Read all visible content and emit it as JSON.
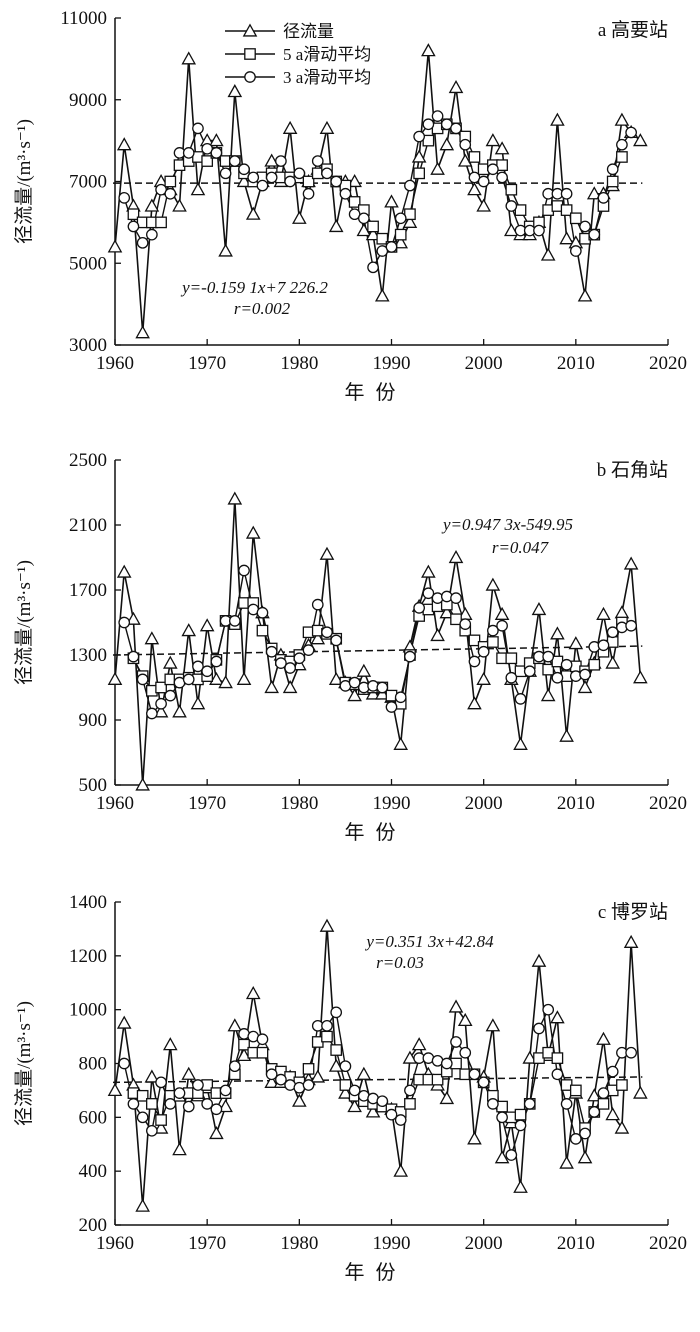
{
  "legend": {
    "series": [
      {
        "name": "径流量",
        "marker": "triangle-icon"
      },
      {
        "name": "5 a滑动平均",
        "marker": "square-icon"
      },
      {
        "name": "3 a滑动平均",
        "marker": "circle-icon"
      }
    ]
  },
  "chart_data": [
    {
      "type": "line",
      "title": "a 高要站",
      "xlabel": "年 份",
      "ylabel": "径流量/(m³·s⁻¹)",
      "xlim": [
        1960,
        2020
      ],
      "ylim": [
        3000,
        11000
      ],
      "yticks": [
        3000,
        5000,
        7000,
        9000,
        11000
      ],
      "xticks": [
        1960,
        1970,
        1980,
        1990,
        2000,
        2010,
        2020
      ],
      "trend": {
        "slope": -0.1591,
        "intercept": 7226.2,
        "y_start": 6960,
        "y_end": 6960
      },
      "equation": "y=-0.159 1x+7 226.2",
      "r_text": "r=0.002",
      "x": [
        1960,
        1961,
        1962,
        1963,
        1964,
        1965,
        1966,
        1967,
        1968,
        1969,
        1970,
        1971,
        1972,
        1973,
        1974,
        1975,
        1976,
        1977,
        1978,
        1979,
        1980,
        1981,
        1982,
        1983,
        1984,
        1985,
        1986,
        1987,
        1988,
        1989,
        1990,
        1991,
        1992,
        1993,
        1994,
        1995,
        1996,
        1997,
        1998,
        1999,
        2000,
        2001,
        2002,
        2003,
        2004,
        2005,
        2006,
        2007,
        2008,
        2009,
        2010,
        2011,
        2012,
        2013,
        2014,
        2015,
        2016,
        2017
      ],
      "series": [
        {
          "name": "径流量",
          "values": [
            5400,
            7900,
            6400,
            3300,
            6400,
            7000,
            6800,
            6400,
            10000,
            6800,
            8000,
            8000,
            5300,
            9200,
            7000,
            6200,
            7000,
            7500,
            7000,
            8300,
            6100,
            7000,
            7300,
            8300,
            5900,
            7000,
            7000,
            5800,
            5700,
            4200,
            6500,
            5500,
            6000,
            7600,
            10200,
            7300,
            7900,
            9300,
            7500,
            6800,
            6400,
            8000,
            7800,
            5800,
            5700,
            5700,
            6000,
            5200,
            8500,
            5600,
            5500,
            4200,
            6700,
            6700,
            6900,
            8500,
            8200,
            8000
          ]
        },
        {
          "name": "5 a滑动平均",
          "values": [
            null,
            null,
            6200,
            6000,
            6000,
            6000,
            7000,
            7400,
            7500,
            7600,
            7500,
            7700,
            7500,
            7500,
            7200,
            7000,
            7100,
            7200,
            7100,
            7100,
            7100,
            7000,
            7200,
            7300,
            7000,
            6900,
            6500,
            6300,
            5900,
            5600,
            5400,
            5700,
            6200,
            7200,
            8000,
            8300,
            8400,
            8300,
            8100,
            7600,
            7300,
            7400,
            7400,
            6800,
            6300,
            5900,
            6000,
            6300,
            6400,
            6300,
            6100,
            5600,
            5700,
            6400,
            7000,
            7600,
            null,
            null
          ]
        },
        {
          "name": "3 a滑动平均",
          "values": [
            null,
            6600,
            5900,
            5500,
            5700,
            6800,
            6700,
            7700,
            7700,
            8300,
            7800,
            7700,
            7200,
            7500,
            7300,
            7100,
            6900,
            7100,
            7500,
            7000,
            7200,
            6700,
            7500,
            7200,
            7000,
            6700,
            6200,
            6100,
            4900,
            5300,
            5400,
            6100,
            6900,
            8100,
            8400,
            8600,
            8400,
            8300,
            7900,
            7100,
            7000,
            7300,
            7100,
            6400,
            5800,
            5800,
            5800,
            6700,
            6700,
            6700,
            5300,
            5900,
            5700,
            6600,
            7300,
            7900,
            8200,
            null
          ]
        }
      ]
    },
    {
      "type": "line",
      "title": "b 石角站",
      "xlabel": "年 份",
      "ylabel": "径流量/(m³·s⁻¹)",
      "xlim": [
        1960,
        2020
      ],
      "ylim": [
        500,
        2500
      ],
      "yticks": [
        500,
        900,
        1300,
        1700,
        2100,
        2500
      ],
      "xticks": [
        1960,
        1970,
        1980,
        1990,
        2000,
        2010,
        2020
      ],
      "trend": {
        "slope": 0.9473,
        "intercept": -549.95,
        "y_start": 1300,
        "y_end": 1355
      },
      "equation": "y=0.947 3x-549.95",
      "r_text": "r=0.047",
      "x": [
        1960,
        1961,
        1962,
        1963,
        1964,
        1965,
        1966,
        1967,
        1968,
        1969,
        1970,
        1971,
        1972,
        1973,
        1974,
        1975,
        1976,
        1977,
        1978,
        1979,
        1980,
        1981,
        1982,
        1983,
        1984,
        1985,
        1986,
        1987,
        1988,
        1989,
        1990,
        1991,
        1992,
        1993,
        1994,
        1995,
        1996,
        1997,
        1998,
        1999,
        2000,
        2001,
        2002,
        2003,
        2004,
        2005,
        2006,
        2007,
        2008,
        2009,
        2010,
        2011,
        2012,
        2013,
        2014,
        2015,
        2016,
        2017
      ],
      "series": [
        {
          "name": "径流量",
          "values": [
            1150,
            1810,
            1520,
            500,
            1400,
            950,
            1250,
            950,
            1450,
            1000,
            1480,
            1150,
            1130,
            2260,
            1150,
            2050,
            1560,
            1100,
            1300,
            1100,
            1240,
            1360,
            1400,
            1920,
            1150,
            1130,
            1050,
            1200,
            1060,
            1060,
            1040,
            750,
            1350,
            1600,
            1810,
            1420,
            1560,
            1900,
            1550,
            1000,
            1150,
            1730,
            1550,
            1150,
            750,
            1200,
            1580,
            1050,
            1430,
            800,
            1370,
            1100,
            1250,
            1550,
            1250,
            1560,
            1860,
            1160
          ]
        },
        {
          "name": "5 a滑动平均",
          "values": [
            null,
            null,
            1280,
            1170,
            1080,
            1100,
            1150,
            1150,
            1160,
            1150,
            1170,
            1270,
            1510,
            1490,
            1620,
            1620,
            1450,
            1340,
            1270,
            1260,
            1300,
            1440,
            1450,
            1430,
            1400,
            1130,
            1120,
            1090,
            1100,
            1100,
            1050,
            1000,
            1300,
            1540,
            1580,
            1600,
            1610,
            1520,
            1450,
            1390,
            1350,
            1380,
            1280,
            1280,
            1200,
            1250,
            1280,
            1210,
            1260,
            1170,
            1230,
            1200,
            1240,
            1320,
            1380,
            1500,
            null,
            null
          ]
        },
        {
          "name": "3 a滑动平均",
          "values": [
            null,
            1500,
            1290,
            1150,
            940,
            1000,
            1050,
            1130,
            1150,
            1230,
            1200,
            1260,
            1510,
            1510,
            1820,
            1580,
            1560,
            1320,
            1250,
            1220,
            1280,
            1330,
            1610,
            1440,
            1390,
            1110,
            1130,
            1100,
            1110,
            1100,
            980,
            1040,
            1290,
            1590,
            1680,
            1650,
            1660,
            1650,
            1490,
            1260,
            1320,
            1450,
            1480,
            1160,
            1030,
            1200,
            1290,
            1290,
            1160,
            1240,
            1170,
            1180,
            1350,
            1360,
            1440,
            1470,
            1480,
            null
          ]
        }
      ]
    },
    {
      "type": "line",
      "title": "c 博罗站",
      "xlabel": "年 份",
      "ylabel": "径流量/(m³·s⁻¹)",
      "xlim": [
        1960,
        2020
      ],
      "ylim": [
        200,
        1400
      ],
      "yticks": [
        200,
        400,
        600,
        800,
        1000,
        1200,
        1400
      ],
      "xticks": [
        1960,
        1970,
        1980,
        1990,
        2000,
        2010,
        2020
      ],
      "trend": {
        "slope": 0.3513,
        "intercept": 42.84,
        "y_start": 730,
        "y_end": 750
      },
      "equation": "y=0.351 3x+42.84",
      "r_text": "r=0.03",
      "x": [
        1960,
        1961,
        1962,
        1963,
        1964,
        1965,
        1966,
        1967,
        1968,
        1969,
        1970,
        1971,
        1972,
        1973,
        1974,
        1975,
        1976,
        1977,
        1978,
        1979,
        1980,
        1981,
        1982,
        1983,
        1984,
        1985,
        1986,
        1987,
        1988,
        1989,
        1990,
        1991,
        1992,
        1993,
        1994,
        1995,
        1996,
        1997,
        1998,
        1999,
        2000,
        2001,
        2002,
        2003,
        2004,
        2005,
        2006,
        2007,
        2008,
        2009,
        2010,
        2011,
        2012,
        2013,
        2014,
        2015,
        2016,
        2017
      ],
      "series": [
        {
          "name": "径流量",
          "values": [
            700,
            950,
            720,
            270,
            750,
            560,
            870,
            480,
            760,
            680,
            710,
            540,
            640,
            940,
            830,
            1060,
            870,
            730,
            730,
            750,
            660,
            740,
            750,
            1310,
            790,
            690,
            640,
            760,
            620,
            640,
            630,
            400,
            820,
            870,
            760,
            720,
            670,
            1010,
            960,
            520,
            750,
            940,
            450,
            580,
            340,
            820,
            1180,
            830,
            970,
            430,
            690,
            450,
            680,
            890,
            610,
            560,
            1250,
            690
          ]
        },
        {
          "name": "5 a滑动平均",
          "values": [
            null,
            null,
            690,
            680,
            650,
            590,
            680,
            680,
            690,
            690,
            720,
            690,
            690,
            760,
            870,
            840,
            840,
            780,
            770,
            750,
            730,
            780,
            880,
            900,
            850,
            720,
            680,
            660,
            650,
            640,
            630,
            620,
            650,
            740,
            740,
            740,
            770,
            800,
            760,
            760,
            730,
            680,
            640,
            600,
            610,
            650,
            820,
            840,
            820,
            720,
            700,
            560,
            620,
            650,
            700,
            720,
            null,
            null
          ]
        },
        {
          "name": "3 a滑动平均",
          "values": [
            null,
            800,
            650,
            600,
            550,
            730,
            650,
            690,
            640,
            720,
            650,
            630,
            700,
            790,
            910,
            900,
            890,
            760,
            740,
            720,
            710,
            720,
            940,
            940,
            990,
            790,
            700,
            680,
            670,
            660,
            610,
            590,
            700,
            820,
            820,
            810,
            800,
            880,
            840,
            760,
            730,
            650,
            600,
            460,
            570,
            650,
            930,
            1000,
            760,
            650,
            520,
            540,
            620,
            690,
            770,
            840,
            840,
            null
          ]
        }
      ]
    }
  ]
}
